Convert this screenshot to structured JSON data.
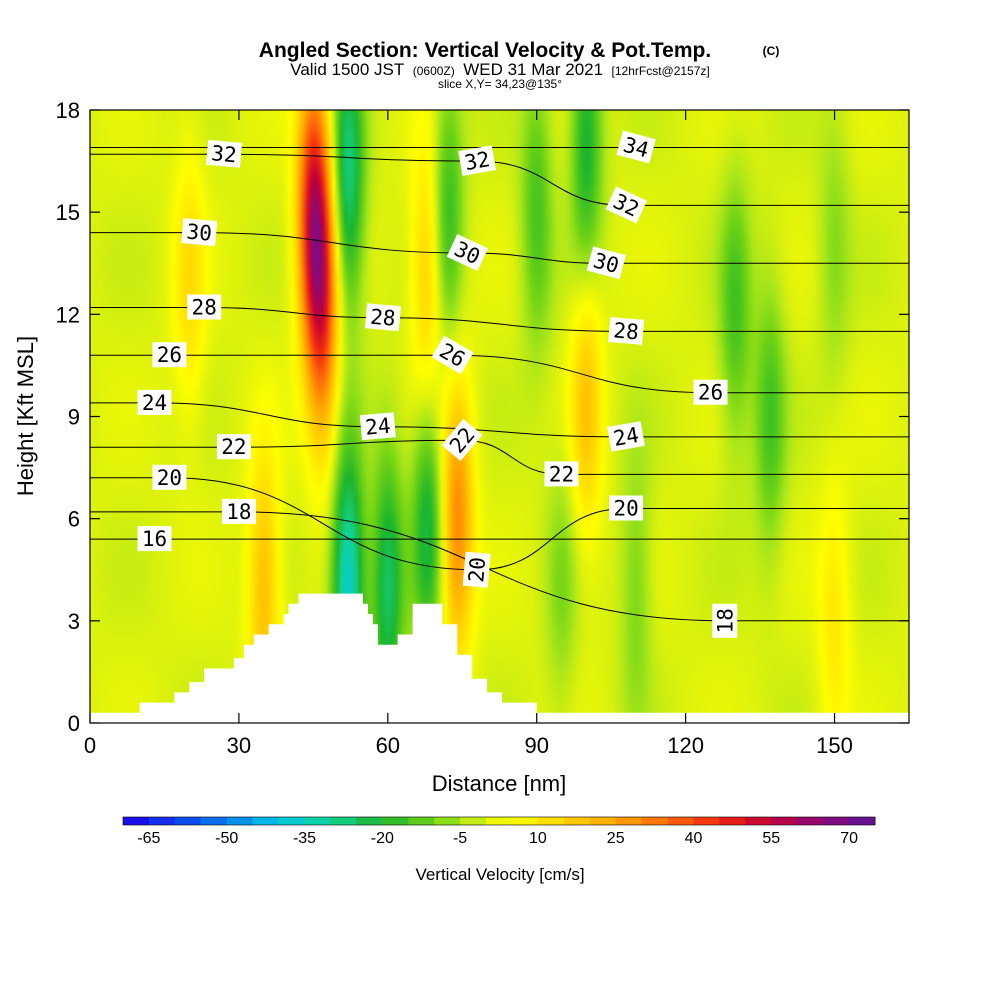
{
  "header": {
    "title": "Angled Section: Vertical Velocity & Pot.Temp.",
    "copyright_mark": "(C)",
    "valid_prefix": "Valid 1500 JST",
    "valid_utc": "(0600Z)",
    "valid_date": "WED 31 Mar 2021",
    "forecast_tag": "[12hrFcst@2157z]",
    "slice": "slice X,Y= 34,23@135°"
  },
  "chart_data": {
    "type": "heatmap",
    "title": "Angled Section: Vertical Velocity & Pot.Temp.",
    "xlabel": "Distance [nm]",
    "ylabel": "Height [Kft MSL]",
    "xlim": [
      0,
      165
    ],
    "ylim": [
      0,
      18
    ],
    "x_ticks": [
      "0",
      "30",
      "60",
      "90",
      "120",
      "150"
    ],
    "y_ticks": [
      "0",
      "3",
      "6",
      "9",
      "12",
      "15",
      "18"
    ],
    "x_tick_values": [
      0,
      30,
      60,
      90,
      120,
      150
    ],
    "y_tick_values": [
      0,
      3,
      6,
      9,
      12,
      15,
      18
    ],
    "background_vertical_velocity_cm_s": 0,
    "vertical_velocity_features": [
      {
        "x": 45,
        "y": 15,
        "w_cm_s": 50
      },
      {
        "x": 47,
        "y": 12,
        "w_cm_s": 35
      },
      {
        "x": 52,
        "y": 16,
        "w_cm_s": -28
      },
      {
        "x": 52,
        "y": 4,
        "w_cm_s": -38
      },
      {
        "x": 60,
        "y": 4,
        "w_cm_s": -25
      },
      {
        "x": 68,
        "y": 6,
        "w_cm_s": -22
      },
      {
        "x": 68,
        "y": 13,
        "w_cm_s": 18
      },
      {
        "x": 72,
        "y": 15,
        "w_cm_s": -18
      },
      {
        "x": 74,
        "y": 6,
        "w_cm_s": 30
      },
      {
        "x": 35,
        "y": 4,
        "w_cm_s": 20
      },
      {
        "x": 90,
        "y": 15,
        "w_cm_s": -15
      },
      {
        "x": 100,
        "y": 17,
        "w_cm_s": -22
      },
      {
        "x": 100,
        "y": 9.5,
        "w_cm_s": 18
      },
      {
        "x": 95,
        "y": 4,
        "w_cm_s": -8
      },
      {
        "x": 110,
        "y": 4,
        "w_cm_s": -10
      },
      {
        "x": 130,
        "y": 12,
        "w_cm_s": -15
      },
      {
        "x": 137,
        "y": 9,
        "w_cm_s": -15
      },
      {
        "x": 150,
        "y": 14,
        "w_cm_s": -8
      },
      {
        "x": 150,
        "y": 3,
        "w_cm_s": 10
      },
      {
        "x": 20,
        "y": 13,
        "w_cm_s": 12
      }
    ],
    "terrain_profile": [
      {
        "x": 0,
        "h": 0.3
      },
      {
        "x": 10,
        "h": 0.3
      },
      {
        "x": 10,
        "h": 0.6
      },
      {
        "x": 17,
        "h": 0.6
      },
      {
        "x": 17,
        "h": 0.9
      },
      {
        "x": 20,
        "h": 0.9
      },
      {
        "x": 20,
        "h": 1.2
      },
      {
        "x": 23,
        "h": 1.2
      },
      {
        "x": 23,
        "h": 1.6
      },
      {
        "x": 29,
        "h": 1.6
      },
      {
        "x": 29,
        "h": 1.9
      },
      {
        "x": 31,
        "h": 1.9
      },
      {
        "x": 31,
        "h": 2.3
      },
      {
        "x": 33,
        "h": 2.3
      },
      {
        "x": 33,
        "h": 2.6
      },
      {
        "x": 36,
        "h": 2.6
      },
      {
        "x": 36,
        "h": 2.9
      },
      {
        "x": 39,
        "h": 2.9
      },
      {
        "x": 39,
        "h": 3.2
      },
      {
        "x": 40,
        "h": 3.2
      },
      {
        "x": 40,
        "h": 3.5
      },
      {
        "x": 42,
        "h": 3.5
      },
      {
        "x": 42,
        "h": 3.8
      },
      {
        "x": 55,
        "h": 3.8
      },
      {
        "x": 55,
        "h": 3.5
      },
      {
        "x": 56,
        "h": 3.5
      },
      {
        "x": 56,
        "h": 3.2
      },
      {
        "x": 57,
        "h": 3.2
      },
      {
        "x": 57,
        "h": 2.9
      },
      {
        "x": 58,
        "h": 2.9
      },
      {
        "x": 58,
        "h": 2.3
      },
      {
        "x": 62,
        "h": 2.3
      },
      {
        "x": 62,
        "h": 2.6
      },
      {
        "x": 65,
        "h": 2.6
      },
      {
        "x": 65,
        "h": 3.5
      },
      {
        "x": 71,
        "h": 3.5
      },
      {
        "x": 71,
        "h": 2.9
      },
      {
        "x": 74,
        "h": 2.9
      },
      {
        "x": 74,
        "h": 2.0
      },
      {
        "x": 77,
        "h": 2.0
      },
      {
        "x": 77,
        "h": 1.3
      },
      {
        "x": 80,
        "h": 1.3
      },
      {
        "x": 80,
        "h": 0.9
      },
      {
        "x": 83,
        "h": 0.9
      },
      {
        "x": 83,
        "h": 0.6
      },
      {
        "x": 90,
        "h": 0.6
      },
      {
        "x": 90,
        "h": 0.3
      },
      {
        "x": 165,
        "h": 0.3
      }
    ],
    "potential_temperature_labels": [
      {
        "text": "34",
        "x": 110,
        "y": 16.9,
        "angle": 15
      },
      {
        "text": "32",
        "x": 27,
        "y": 16.7,
        "angle": 5
      },
      {
        "text": "32",
        "x": 78,
        "y": 16.5,
        "angle": -10
      },
      {
        "text": "32",
        "x": 108,
        "y": 15.2,
        "angle": 25
      },
      {
        "text": "30",
        "x": 22,
        "y": 14.4,
        "angle": 5
      },
      {
        "text": "30",
        "x": 76,
        "y": 13.8,
        "angle": 25
      },
      {
        "text": "30",
        "x": 104,
        "y": 13.5,
        "angle": 15
      },
      {
        "text": "28",
        "x": 23,
        "y": 12.2,
        "angle": 0
      },
      {
        "text": "28",
        "x": 59,
        "y": 11.9,
        "angle": 5
      },
      {
        "text": "28",
        "x": 108,
        "y": 11.5,
        "angle": 5
      },
      {
        "text": "26",
        "x": 16,
        "y": 10.8,
        "angle": 0
      },
      {
        "text": "26",
        "x": 73,
        "y": 10.8,
        "angle": 30
      },
      {
        "text": "26",
        "x": 125,
        "y": 9.7,
        "angle": 0
      },
      {
        "text": "24",
        "x": 13,
        "y": 9.4,
        "angle": 0
      },
      {
        "text": "24",
        "x": 58,
        "y": 8.7,
        "angle": -5
      },
      {
        "text": "24",
        "x": 108,
        "y": 8.4,
        "angle": -10
      },
      {
        "text": "22",
        "x": 29,
        "y": 8.1,
        "angle": 0
      },
      {
        "text": "22",
        "x": 75,
        "y": 8.3,
        "angle": -50
      },
      {
        "text": "22",
        "x": 95,
        "y": 7.3,
        "angle": 0
      },
      {
        "text": "20",
        "x": 16,
        "y": 7.2,
        "angle": 0
      },
      {
        "text": "20",
        "x": 108,
        "y": 6.3,
        "angle": 0
      },
      {
        "text": "20",
        "x": 78,
        "y": 4.5,
        "angle": -85
      },
      {
        "text": "18",
        "x": 30,
        "y": 6.2,
        "angle": 0
      },
      {
        "text": "18",
        "x": 128,
        "y": 3.0,
        "angle": -90
      },
      {
        "text": "16",
        "x": 13,
        "y": 5.4,
        "angle": 0
      }
    ],
    "colorbar": {
      "title": "Vertical Velocity [cm/s]",
      "min": -70,
      "max": 75,
      "step": 5,
      "tick_labels": [
        "-65",
        "-50",
        "-35",
        "-20",
        "-5",
        "10",
        "25",
        "40",
        "55",
        "70"
      ],
      "tick_values": [
        -65,
        -50,
        -35,
        -20,
        -5,
        10,
        25,
        40,
        55,
        70
      ]
    }
  },
  "color_stops": [
    {
      "v": -70,
      "c": "#1c00e8"
    },
    {
      "v": -55,
      "c": "#0a5cf0"
    },
    {
      "v": -40,
      "c": "#00c8e6"
    },
    {
      "v": -30,
      "c": "#12d494"
    },
    {
      "v": -20,
      "c": "#1bb52d"
    },
    {
      "v": -10,
      "c": "#72d414"
    },
    {
      "v": -5,
      "c": "#a8e61a"
    },
    {
      "v": 0,
      "c": "#dcf20c"
    },
    {
      "v": 5,
      "c": "#ffff00"
    },
    {
      "v": 15,
      "c": "#ffd300"
    },
    {
      "v": 25,
      "c": "#ffa500"
    },
    {
      "v": 35,
      "c": "#ff6a0a"
    },
    {
      "v": 45,
      "c": "#f02810"
    },
    {
      "v": 55,
      "c": "#c0003a"
    },
    {
      "v": 65,
      "c": "#8a0a7a"
    },
    {
      "v": 75,
      "c": "#5a1496"
    }
  ]
}
